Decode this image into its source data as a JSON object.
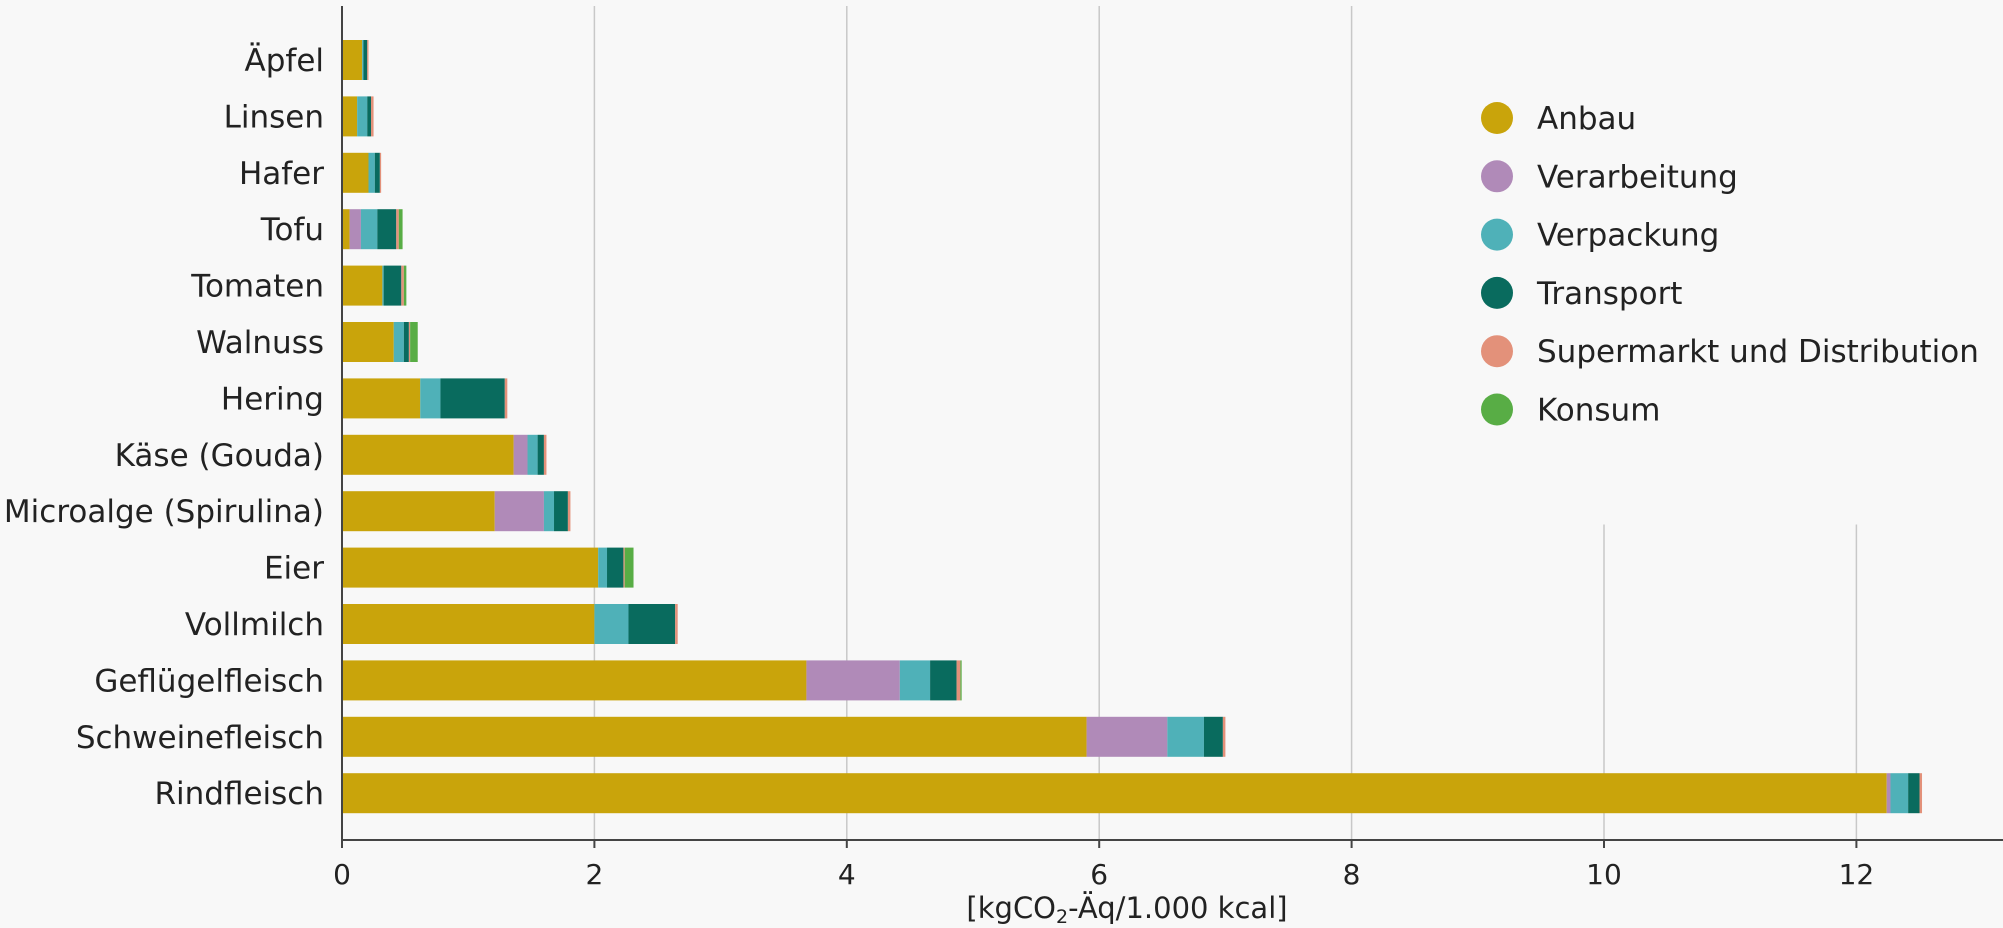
{
  "chart_data": {
    "type": "bar",
    "orientation": "horizontal",
    "stacked": true,
    "categories": [
      "Äpfel",
      "Linsen",
      "Hafer",
      "Tofu",
      "Tomaten",
      "Walnuss",
      "Hering",
      "Käse (Gouda)",
      "Microalge (Spirulina)",
      "Eier",
      "Vollmilch",
      "Geflügelfleisch",
      "Schweinefleisch",
      "Rindfleisch"
    ],
    "series": [
      {
        "name": "Anbau",
        "color": "#c9a40b",
        "values": [
          0.16,
          0.12,
          0.21,
          0.06,
          0.32,
          0.41,
          0.62,
          1.36,
          1.21,
          2.03,
          2.0,
          3.68,
          5.9,
          12.24
        ]
      },
      {
        "name": "Verarbeitung",
        "color": "#b08ab8",
        "values": [
          0.0,
          0.0,
          0.0,
          0.09,
          0.0,
          0.0,
          0.0,
          0.11,
          0.39,
          0.0,
          0.0,
          0.74,
          0.64,
          0.03
        ]
      },
      {
        "name": "Verpackung",
        "color": "#4fb1b8",
        "values": [
          0.01,
          0.08,
          0.05,
          0.13,
          0.01,
          0.08,
          0.16,
          0.08,
          0.08,
          0.07,
          0.27,
          0.24,
          0.29,
          0.14
        ]
      },
      {
        "name": "Transport",
        "color": "#096b5e",
        "values": [
          0.03,
          0.03,
          0.04,
          0.15,
          0.14,
          0.04,
          0.51,
          0.05,
          0.11,
          0.13,
          0.37,
          0.21,
          0.15,
          0.09
        ]
      },
      {
        "name": "Supermarkt und Distribution",
        "color": "#e3917a",
        "values": [
          0.01,
          0.02,
          0.01,
          0.02,
          0.02,
          0.01,
          0.02,
          0.02,
          0.02,
          0.01,
          0.02,
          0.03,
          0.02,
          0.02
        ]
      },
      {
        "name": "Konsum",
        "color": "#58ad45",
        "values": [
          0.0,
          0.0,
          0.0,
          0.03,
          0.02,
          0.06,
          0.0,
          0.0,
          0.0,
          0.07,
          0.0,
          0.01,
          0.0,
          0.0
        ]
      }
    ],
    "xlim": [
      0,
      13.2
    ],
    "xticks": [
      0,
      2,
      4,
      6,
      8,
      10,
      12
    ],
    "xlabel_parts": {
      "before": "[kgCO",
      "sub": "2",
      "after": "-Äq/1.000 kcal]"
    },
    "ylabel": "",
    "grid": "vertical",
    "legend": "top-right",
    "gridline_color": "#c8c8c8",
    "axis_color": "#444444"
  }
}
